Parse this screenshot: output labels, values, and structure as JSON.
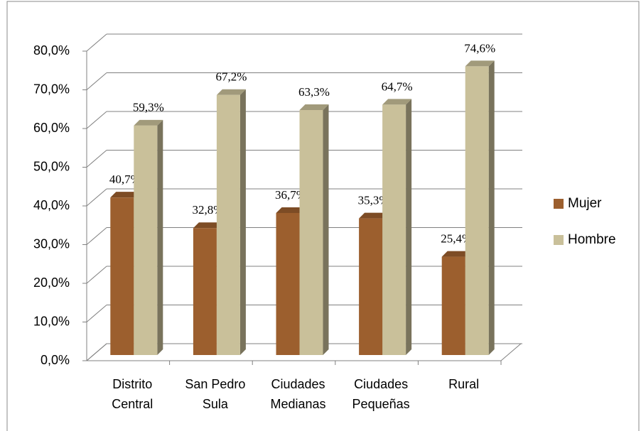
{
  "chart_data": {
    "type": "bar3d",
    "categories": [
      "Distrito Central",
      "San Pedro Sula",
      "Ciudades Medianas",
      "Ciudades Pequeñas",
      "Rural"
    ],
    "series": [
      {
        "name": "Mujer",
        "color": "#9c5f2e",
        "values": [
          40.7,
          32.8,
          36.7,
          35.3,
          25.4
        ],
        "value_labels": [
          "40,7%",
          "32,8%",
          "36,7%",
          "35,3%",
          "25,4%"
        ]
      },
      {
        "name": "Hombre",
        "color": "#c9c09a",
        "values": [
          59.3,
          67.2,
          63.3,
          64.7,
          74.6
        ],
        "value_labels": [
          "59,3%",
          "67,2%",
          "63,3%",
          "64,7%",
          "74,6%"
        ]
      }
    ],
    "ylim": [
      0,
      80
    ],
    "yticks": [
      {
        "value": 0,
        "label": "0,0%"
      },
      {
        "value": 10,
        "label": "10,0%"
      },
      {
        "value": 20,
        "label": "20,0%"
      },
      {
        "value": 30,
        "label": "30,0%"
      },
      {
        "value": 40,
        "label": "40,0%"
      },
      {
        "value": 50,
        "label": "50,0%"
      },
      {
        "value": 60,
        "label": "60,0%"
      },
      {
        "value": 70,
        "label": "70,0%"
      },
      {
        "value": 80,
        "label": "80,0%"
      }
    ],
    "grid": true,
    "legend": "right"
  }
}
